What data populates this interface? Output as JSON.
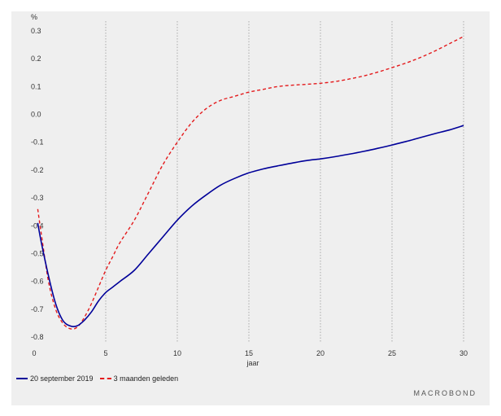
{
  "chart_data": {
    "type": "line",
    "ylabel": "%",
    "xlabel": "jaar",
    "xlim": [
      0,
      30
    ],
    "ylim": [
      -0.82,
      0.32
    ],
    "x_ticks": [
      0,
      5,
      10,
      15,
      20,
      25,
      30
    ],
    "y_ticks": [
      0.3,
      0.2,
      0.1,
      0.0,
      -0.1,
      -0.2,
      -0.3,
      -0.4,
      -0.5,
      -0.6,
      -0.7,
      -0.8
    ],
    "y_tick_labels": [
      "0.3",
      "0.2",
      "0.1",
      "0.0",
      "-0.1",
      "-0.2",
      "-0.3",
      "-0.4",
      "-0.5",
      "-0.6",
      "-0.7",
      "-0.8"
    ],
    "grid": "vertical-dotted",
    "legend_position": "bottom-left",
    "series": [
      {
        "name": "20 september 2019",
        "color": "#000099",
        "style": "solid",
        "x": [
          0.25,
          0.5,
          1,
          1.5,
          2,
          2.5,
          3,
          3.5,
          4,
          4.5,
          5,
          5.5,
          6,
          7,
          8,
          9,
          10,
          11,
          12,
          13,
          14,
          15,
          16,
          17,
          18,
          19,
          20,
          21,
          22,
          23,
          24,
          25,
          26,
          27,
          28,
          29,
          30
        ],
        "values": [
          -0.39,
          -0.46,
          -0.58,
          -0.68,
          -0.74,
          -0.76,
          -0.76,
          -0.74,
          -0.71,
          -0.67,
          -0.64,
          -0.62,
          -0.6,
          -0.56,
          -0.5,
          -0.44,
          -0.38,
          -0.33,
          -0.29,
          -0.255,
          -0.23,
          -0.21,
          -0.196,
          -0.185,
          -0.175,
          -0.166,
          -0.16,
          -0.152,
          -0.143,
          -0.133,
          -0.122,
          -0.11,
          -0.097,
          -0.083,
          -0.069,
          -0.056,
          -0.04
        ]
      },
      {
        "name": "3 maanden geleden",
        "color": "#e41a1c",
        "style": "dashed",
        "x": [
          0.25,
          0.5,
          1,
          1.5,
          2,
          2.5,
          3,
          3.5,
          4,
          4.5,
          5,
          5.5,
          6,
          7,
          8,
          9,
          10,
          11,
          12,
          13,
          14,
          15,
          16,
          17,
          18,
          19,
          20,
          21,
          22,
          23,
          24,
          25,
          26,
          27,
          28,
          29,
          30
        ],
        "values": [
          -0.34,
          -0.43,
          -0.6,
          -0.7,
          -0.75,
          -0.77,
          -0.765,
          -0.73,
          -0.68,
          -0.62,
          -0.56,
          -0.51,
          -0.46,
          -0.38,
          -0.28,
          -0.18,
          -0.1,
          -0.03,
          0.02,
          0.05,
          0.065,
          0.08,
          0.09,
          0.1,
          0.105,
          0.108,
          0.112,
          0.118,
          0.127,
          0.138,
          0.152,
          0.168,
          0.185,
          0.205,
          0.228,
          0.254,
          0.28
        ]
      }
    ]
  },
  "legend": {
    "series1_label": "20 september 2019",
    "series2_label": "3 maanden geleden"
  },
  "brand": {
    "logo_text": "MACROBOND"
  }
}
